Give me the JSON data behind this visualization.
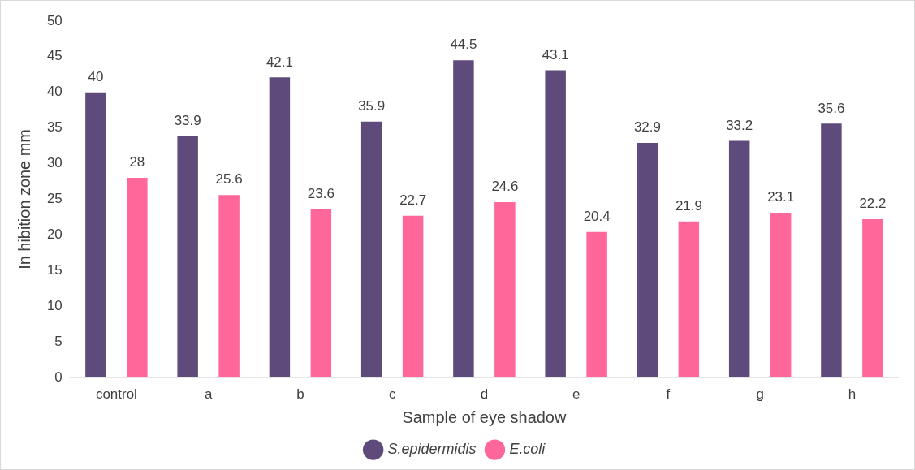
{
  "chart_data": {
    "type": "bar",
    "xlabel": "Sample of eye shadow",
    "ylabel": "In hibition zone mm",
    "categories": [
      "control",
      "a",
      "b",
      "c",
      "d",
      "e",
      "f",
      "g",
      "h"
    ],
    "series": [
      {
        "name": "S.epidermidis",
        "color": "#5f4b7b",
        "values": [
          40,
          33.9,
          42.1,
          35.9,
          44.5,
          43.1,
          32.9,
          33.2,
          35.6
        ]
      },
      {
        "name": "E.coli",
        "color": "#ff6699",
        "values": [
          28,
          25.6,
          23.6,
          22.7,
          24.6,
          20.4,
          21.9,
          23.1,
          22.2
        ]
      }
    ],
    "ylim": [
      0,
      50
    ],
    "yticks": [
      0,
      5,
      10,
      15,
      20,
      25,
      30,
      35,
      40,
      45,
      50
    ],
    "grid": false,
    "legend": "bottom",
    "data_labels": true
  }
}
